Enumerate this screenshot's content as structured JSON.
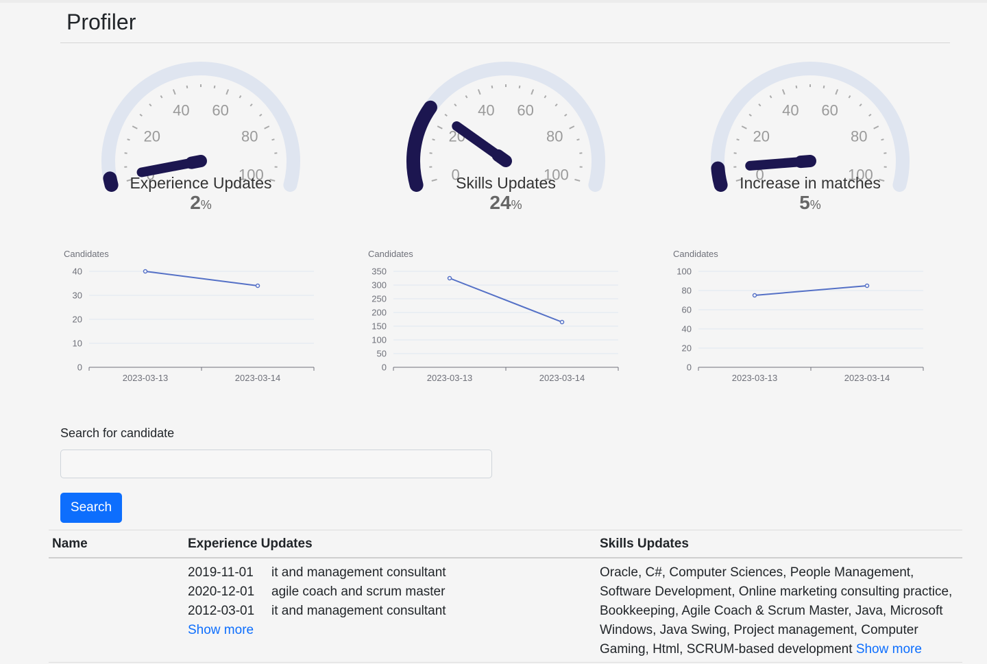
{
  "page": {
    "title": "Profiler"
  },
  "gauges": [
    {
      "label": "Experience Updates",
      "value": 2,
      "unit": "%",
      "ticks": [
        "0",
        "20",
        "40",
        "60",
        "80",
        "100"
      ]
    },
    {
      "label": "Skills Updates",
      "value": 24,
      "unit": "%",
      "ticks": [
        "0",
        "20",
        "40",
        "60",
        "80",
        "100"
      ]
    },
    {
      "label": "Increase in matches",
      "value": 5,
      "unit": "%",
      "ticks": [
        "0",
        "20",
        "40",
        "60",
        "80",
        "100"
      ]
    }
  ],
  "colors": {
    "gauge_track": "#dfe5f0",
    "gauge_fill": "#1c1650",
    "tick": "#aaaaaa",
    "line": "#5470c6",
    "grid": "#e0e6f1",
    "accent": "#0d6efd"
  },
  "chart_data": [
    {
      "type": "line",
      "ylabel": "Candidates",
      "x": [
        "2023-03-13",
        "2023-03-14"
      ],
      "values": [
        40,
        34
      ],
      "ylim": [
        0,
        40
      ],
      "yticks": [
        0,
        10,
        20,
        30,
        40
      ],
      "grid": true
    },
    {
      "type": "line",
      "ylabel": "Candidates",
      "x": [
        "2023-03-13",
        "2023-03-14"
      ],
      "values": [
        325,
        165
      ],
      "ylim": [
        0,
        350
      ],
      "yticks": [
        0,
        50,
        100,
        150,
        200,
        250,
        300,
        350
      ],
      "grid": true
    },
    {
      "type": "line",
      "ylabel": "Candidates",
      "x": [
        "2023-03-13",
        "2023-03-14"
      ],
      "values": [
        75,
        85
      ],
      "ylim": [
        0,
        100
      ],
      "yticks": [
        0,
        20,
        40,
        60,
        80,
        100
      ],
      "grid": true
    }
  ],
  "search": {
    "label": "Search for candidate",
    "value": "",
    "button_label": "Search"
  },
  "table": {
    "headers": {
      "name": "Name",
      "experience": "Experience Updates",
      "skills": "Skills Updates"
    },
    "rows": [
      {
        "name": "",
        "experience": [
          {
            "date": "2019-11-01",
            "title": "it and management consultant"
          },
          {
            "date": "2020-12-01",
            "title": "agile coach and scrum master"
          },
          {
            "date": "2012-03-01",
            "title": "it and management consultant"
          }
        ],
        "experience_more": "Show more",
        "skills": "Oracle, C#, Computer Sciences, People Management, Software Development, Online marketing consulting practice, Bookkeeping, Agile Coach & Scrum Master, Java, Microsoft Windows, Java Swing, Project management, Computer Gaming, Html, SCRUM-based development",
        "skills_more": "Show more"
      }
    ]
  }
}
